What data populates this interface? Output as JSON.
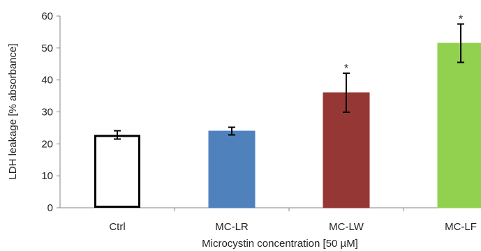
{
  "chart_data": {
    "type": "bar",
    "title": "",
    "xlabel": "Microcystin concentration [50 µM]",
    "ylabel": "LDH leakage [% absorbance]",
    "ylim": [
      0,
      60
    ],
    "yticks": [
      0,
      10,
      20,
      30,
      40,
      50,
      60
    ],
    "grid": false,
    "categories": [
      "Ctrl",
      "MC-LR",
      "MC-LW",
      "MC-LF"
    ],
    "values": [
      22.8,
      24.0,
      36.0,
      51.5
    ],
    "errors": [
      1.3,
      1.2,
      6.1,
      6.0
    ],
    "significance": [
      "",
      "",
      "*",
      "*"
    ],
    "colors": {
      "Ctrl": {
        "fill": "#ffffff",
        "stroke": "#000000"
      },
      "MC-LR": {
        "fill": "#4f81bd",
        "stroke": "#4f81bd"
      },
      "MC-LW": {
        "fill": "#953735",
        "stroke": "#953735"
      },
      "MC-LF": {
        "fill": "#92d050",
        "stroke": "#92d050"
      }
    },
    "axis_color": "#868686"
  }
}
